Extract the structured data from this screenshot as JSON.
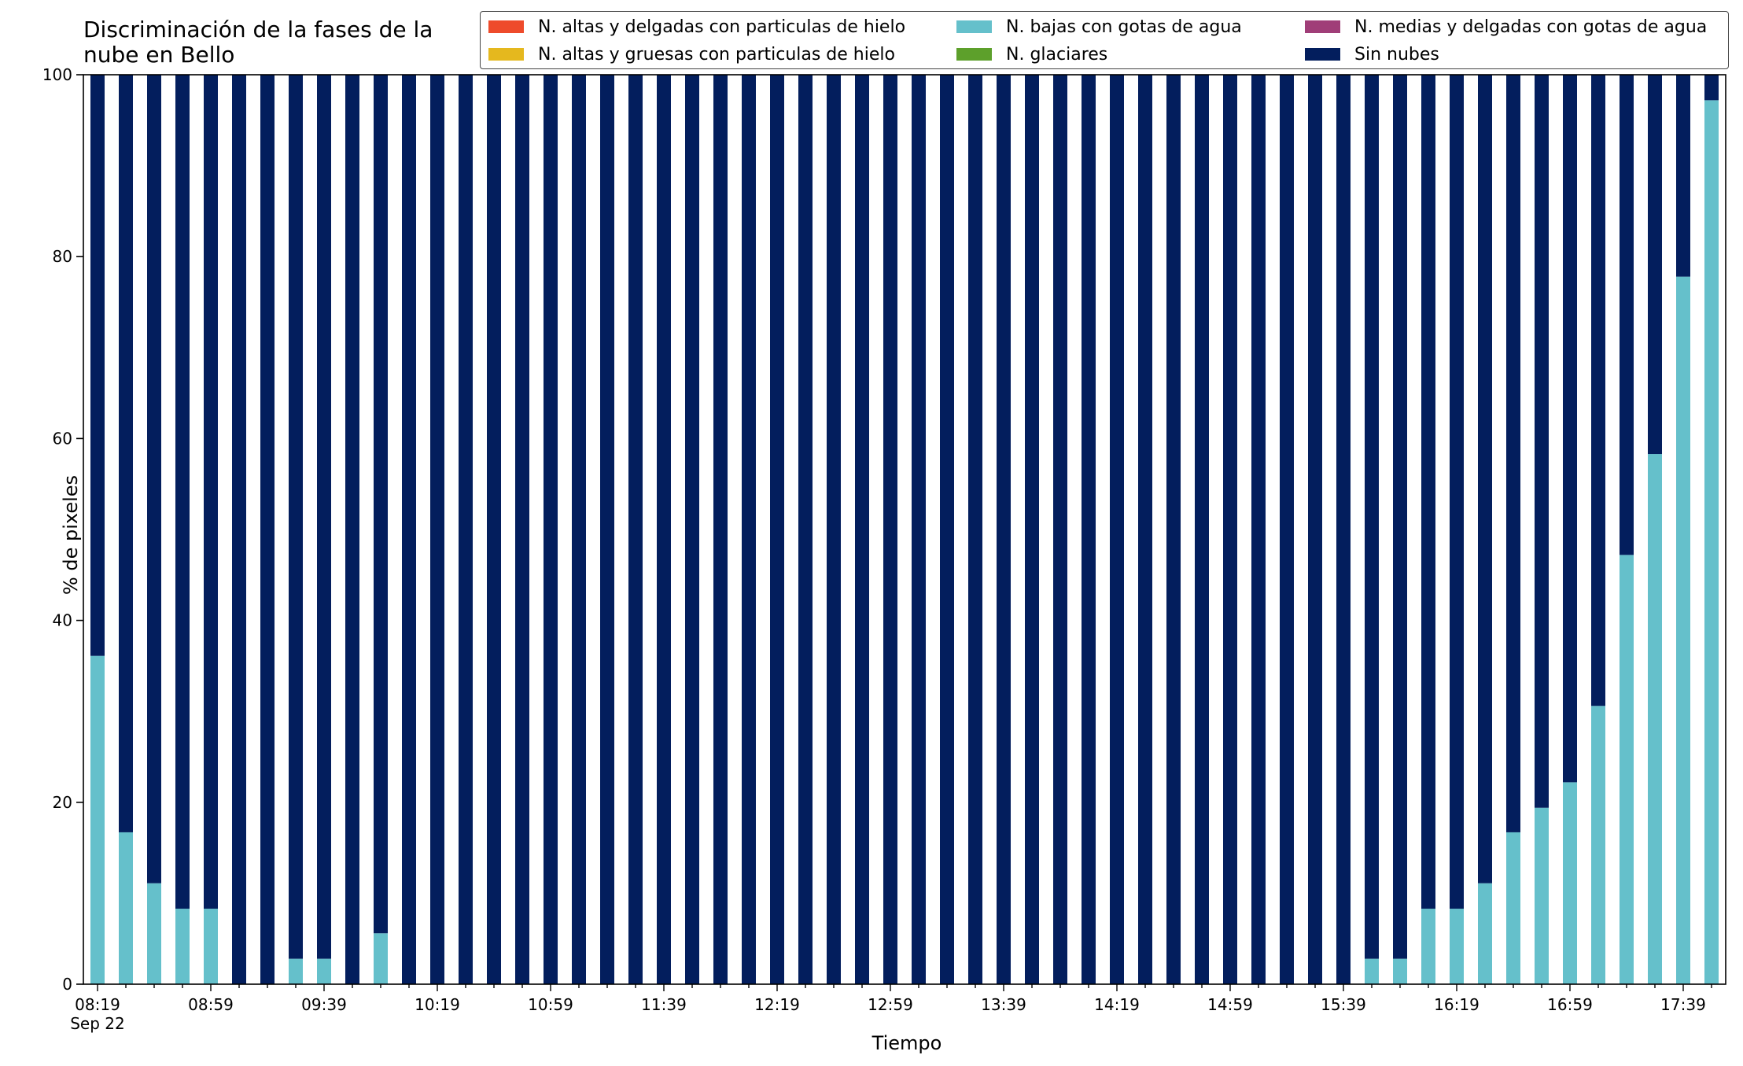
{
  "chart_data": {
    "type": "bar",
    "stacked": true,
    "title": "Discriminación de la fases de la nube en Bello",
    "xlabel": "Tiempo",
    "ylabel": "% de pixeles",
    "ylim": [
      0,
      100
    ],
    "yticks": [
      0,
      20,
      40,
      60,
      80,
      100
    ],
    "grid": false,
    "legend_placement": "top",
    "xtick_labels": [
      "08:19\nSep 22",
      "08:59",
      "09:39",
      "10:19",
      "10:59",
      "11:39",
      "12:19",
      "12:59",
      "13:39",
      "14:19",
      "14:59",
      "15:39",
      "16:19",
      "16:59",
      "17:39"
    ],
    "categories": [
      "08:19",
      "08:29",
      "08:39",
      "08:49",
      "08:59",
      "09:09",
      "09:19",
      "09:29",
      "09:39",
      "09:49",
      "09:59",
      "10:09",
      "10:19",
      "10:29",
      "10:39",
      "10:49",
      "10:59",
      "11:09",
      "11:19",
      "11:29",
      "11:39",
      "11:49",
      "11:59",
      "12:09",
      "12:19",
      "12:29",
      "12:39",
      "12:49",
      "12:59",
      "13:09",
      "13:19",
      "13:29",
      "13:39",
      "13:49",
      "13:59",
      "14:09",
      "14:19",
      "14:29",
      "14:39",
      "14:49",
      "14:59",
      "15:09",
      "15:19",
      "15:29",
      "15:39",
      "15:49",
      "15:59",
      "16:09",
      "16:19",
      "16:29",
      "16:39",
      "16:49",
      "16:59",
      "17:09",
      "17:19",
      "17:29",
      "17:39",
      "17:49"
    ],
    "series": [
      {
        "name": "N. altas y delgadas con particulas de hielo",
        "color": "#ee4b2b",
        "values": [
          0,
          0,
          0,
          0,
          0,
          0,
          0,
          0,
          0,
          0,
          0,
          0,
          0,
          0,
          0,
          0,
          0,
          0,
          0,
          0,
          0,
          0,
          0,
          0,
          0,
          0,
          0,
          0,
          0,
          0,
          0,
          0,
          0,
          0,
          0,
          0,
          0,
          0,
          0,
          0,
          0,
          0,
          0,
          0,
          0,
          0,
          0,
          0,
          0,
          0,
          0,
          0,
          0,
          0,
          0,
          0,
          0,
          0
        ]
      },
      {
        "name": "N. altas y gruesas con particulas de hielo",
        "color": "#e5b81e",
        "values": [
          0,
          0,
          0,
          0,
          0,
          0,
          0,
          0,
          0,
          0,
          0,
          0,
          0,
          0,
          0,
          0,
          0,
          0,
          0,
          0,
          0,
          0,
          0,
          0,
          0,
          0,
          0,
          0,
          0,
          0,
          0,
          0,
          0,
          0,
          0,
          0,
          0,
          0,
          0,
          0,
          0,
          0,
          0,
          0,
          0,
          0,
          0,
          0,
          0,
          0,
          0,
          0,
          0,
          0,
          0,
          0,
          0,
          0
        ]
      },
      {
        "name": "N. bajas con gotas de agua",
        "color": "#65c0cb",
        "values": [
          36.1,
          16.7,
          11.1,
          8.3,
          8.3,
          0,
          0,
          2.8,
          2.8,
          0,
          5.6,
          0,
          0,
          0,
          0,
          0,
          0,
          0,
          0,
          0,
          0,
          0,
          0,
          0,
          0,
          0,
          0,
          0,
          0,
          0,
          0,
          0,
          0,
          0,
          0,
          0,
          0,
          0,
          0,
          0,
          0,
          0,
          0,
          0,
          0,
          2.8,
          2.8,
          8.3,
          8.3,
          11.1,
          16.7,
          19.4,
          22.2,
          30.6,
          47.2,
          58.3,
          77.8,
          97.2
        ]
      },
      {
        "name": "N. glaciares",
        "color": "#5da02b",
        "values": [
          0,
          0,
          0,
          0,
          0,
          0,
          0,
          0,
          0,
          0,
          0,
          0,
          0,
          0,
          0,
          0,
          0,
          0,
          0,
          0,
          0,
          0,
          0,
          0,
          0,
          0,
          0,
          0,
          0,
          0,
          0,
          0,
          0,
          0,
          0,
          0,
          0,
          0,
          0,
          0,
          0,
          0,
          0,
          0,
          0,
          0,
          0,
          0,
          0,
          0,
          0,
          0,
          0,
          0,
          0,
          0,
          0,
          0
        ]
      },
      {
        "name": "N. medias y delgadas con gotas de agua",
        "color": "#a03e78",
        "values": [
          0,
          0,
          0,
          0,
          0,
          0,
          0,
          0,
          0,
          0,
          0,
          0,
          0,
          0,
          0,
          0,
          0,
          0,
          0,
          0,
          0,
          0,
          0,
          0,
          0,
          0,
          0,
          0,
          0,
          0,
          0,
          0,
          0,
          0,
          0,
          0,
          0,
          0,
          0,
          0,
          0,
          0,
          0,
          0,
          0,
          0,
          0,
          0,
          0,
          0,
          0,
          0,
          0,
          0,
          0,
          0,
          0,
          0
        ]
      },
      {
        "name": "Sin nubes",
        "color": "#031e5d",
        "values": [
          63.9,
          83.3,
          88.9,
          91.7,
          91.7,
          100,
          100,
          97.2,
          97.2,
          100,
          94.4,
          100,
          100,
          100,
          100,
          100,
          100,
          100,
          100,
          100,
          100,
          100,
          100,
          100,
          100,
          100,
          100,
          100,
          100,
          100,
          100,
          100,
          100,
          100,
          100,
          100,
          100,
          100,
          100,
          100,
          100,
          100,
          100,
          100,
          100,
          97.2,
          97.2,
          91.7,
          91.7,
          88.9,
          83.3,
          80.6,
          77.8,
          69.4,
          52.8,
          41.7,
          22.2,
          2.8
        ]
      }
    ]
  }
}
